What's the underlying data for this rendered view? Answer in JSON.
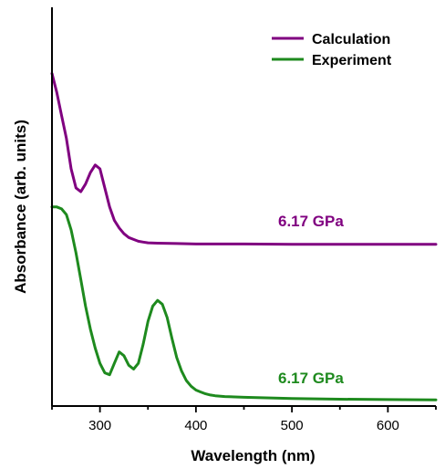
{
  "chart_data": {
    "type": "line",
    "title": "",
    "xlabel": "Wavelength (nm)",
    "ylabel": "Absorbance (arb. units)",
    "xlim": [
      250,
      650
    ],
    "ylim": [
      0,
      1
    ],
    "x_ticks": [
      300,
      400,
      500,
      600
    ],
    "y_ticks": [],
    "grid": false,
    "legend_position": "top-right",
    "series": [
      {
        "name": "Calculation",
        "color": "#800080",
        "x": [
          250,
          255,
          260,
          265,
          270,
          275,
          280,
          285,
          290,
          295,
          300,
          305,
          310,
          315,
          320,
          325,
          330,
          335,
          340,
          345,
          350,
          360,
          380,
          400,
          450,
          500,
          550,
          600,
          650
        ],
        "y": [
          0.86,
          0.81,
          0.75,
          0.69,
          0.61,
          0.56,
          0.55,
          0.57,
          0.6,
          0.62,
          0.61,
          0.56,
          0.51,
          0.475,
          0.455,
          0.44,
          0.43,
          0.425,
          0.42,
          0.418,
          0.416,
          0.415,
          0.414,
          0.413,
          0.413,
          0.412,
          0.412,
          0.412,
          0.412
        ]
      },
      {
        "name": "Experiment",
        "color": "#1e8a1e",
        "x": [
          250,
          255,
          260,
          265,
          270,
          275,
          280,
          285,
          290,
          295,
          300,
          305,
          310,
          315,
          320,
          325,
          330,
          335,
          340,
          345,
          350,
          355,
          360,
          365,
          370,
          375,
          380,
          385,
          390,
          395,
          400,
          405,
          410,
          415,
          420,
          430,
          450,
          500,
          550,
          600,
          650
        ],
        "y": [
          0.51,
          0.51,
          0.505,
          0.49,
          0.45,
          0.39,
          0.32,
          0.25,
          0.19,
          0.14,
          0.1,
          0.075,
          0.07,
          0.1,
          0.13,
          0.12,
          0.095,
          0.085,
          0.1,
          0.15,
          0.21,
          0.25,
          0.265,
          0.255,
          0.22,
          0.165,
          0.115,
          0.08,
          0.055,
          0.04,
          0.03,
          0.025,
          0.02,
          0.017,
          0.015,
          0.013,
          0.011,
          0.008,
          0.006,
          0.005,
          0.004
        ]
      }
    ],
    "annotations": [
      {
        "text": "6.17 GPa",
        "color": "#800080",
        "series": "Calculation"
      },
      {
        "text": "6.17 GPa",
        "color": "#1e8a1e",
        "series": "Experiment"
      }
    ]
  }
}
